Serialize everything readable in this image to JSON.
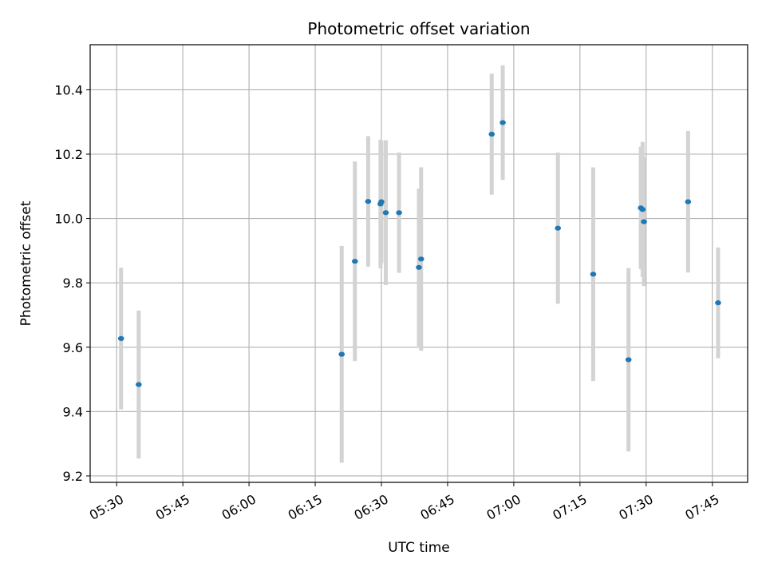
{
  "chart_data": {
    "type": "scatter",
    "title": "Photometric offset variation",
    "xlabel": "UTC time",
    "ylabel": "Photometric offset",
    "x_ticks": [
      "05:30",
      "05:45",
      "06:00",
      "06:15",
      "06:30",
      "06:45",
      "07:00",
      "07:15",
      "07:30",
      "07:45"
    ],
    "y_ticks": [
      "9.2",
      "9.4",
      "9.6",
      "9.8",
      "10.0",
      "10.2",
      "10.4"
    ],
    "xlim": [
      "05:24",
      "07:53"
    ],
    "ylim": [
      9.18,
      10.54
    ],
    "grid": true,
    "point_color": "#1f77b4",
    "errorbar_color": "#d3d3d3",
    "points": [
      {
        "time": "05:31",
        "y": 9.627,
        "err": 0.22
      },
      {
        "time": "05:35",
        "y": 9.484,
        "err": 0.23
      },
      {
        "time": "06:21",
        "y": 9.578,
        "err": 0.337
      },
      {
        "time": "06:24",
        "y": 9.867,
        "err": 0.31
      },
      {
        "time": "06:27",
        "y": 10.053,
        "err": 0.203
      },
      {
        "time": "06:29.8",
        "y": 10.045,
        "err": 0.2
      },
      {
        "time": "06:30",
        "y": 10.052,
        "err": 0.19
      },
      {
        "time": "06:31",
        "y": 10.018,
        "err": 0.225
      },
      {
        "time": "06:34",
        "y": 10.018,
        "err": 0.187
      },
      {
        "time": "06:38.5",
        "y": 9.848,
        "err": 0.245
      },
      {
        "time": "06:39",
        "y": 9.874,
        "err": 0.285
      },
      {
        "time": "06:55",
        "y": 10.262,
        "err": 0.188
      },
      {
        "time": "06:57.5",
        "y": 10.298,
        "err": 0.178
      },
      {
        "time": "07:10",
        "y": 9.97,
        "err": 0.235
      },
      {
        "time": "07:18",
        "y": 9.827,
        "err": 0.332
      },
      {
        "time": "07:26",
        "y": 9.561,
        "err": 0.285
      },
      {
        "time": "07:28.8",
        "y": 10.033,
        "err": 0.19
      },
      {
        "time": "07:29.2",
        "y": 10.028,
        "err": 0.21
      },
      {
        "time": "07:29.5",
        "y": 9.99,
        "err": 0.2
      },
      {
        "time": "07:39.5",
        "y": 10.052,
        "err": 0.22
      },
      {
        "time": "07:46.3",
        "y": 9.738,
        "err": 0.172
      }
    ]
  }
}
